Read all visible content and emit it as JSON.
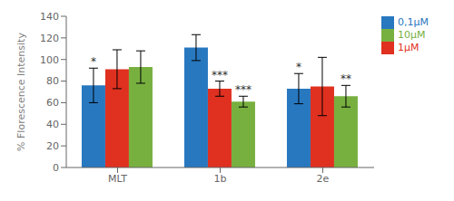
{
  "chart_data": {
    "type": "bar",
    "categories": [
      "MLT",
      "1b",
      "2e"
    ],
    "series": [
      {
        "name": "0,1μM",
        "color": "#2878c0",
        "values": [
          76,
          111,
          73
        ],
        "errors": [
          16,
          12,
          14
        ],
        "annotations": [
          "*",
          null,
          "*"
        ]
      },
      {
        "name": "1μM",
        "color": "#e03020",
        "values": [
          91,
          73,
          75
        ],
        "errors": [
          18,
          7,
          27
        ],
        "annotations": [
          null,
          "***",
          null
        ]
      },
      {
        "name": "10μM",
        "color": "#78b040",
        "values": [
          93,
          61,
          66
        ],
        "errors": [
          15,
          5,
          10
        ],
        "annotations": [
          null,
          "***",
          "**"
        ]
      }
    ],
    "ylabel": "% Florescence Intensity",
    "ylim": [
      0,
      140
    ],
    "yticks": [
      0,
      20,
      40,
      60,
      80,
      100,
      120,
      140
    ],
    "grid": false,
    "legend": "upper right"
  }
}
